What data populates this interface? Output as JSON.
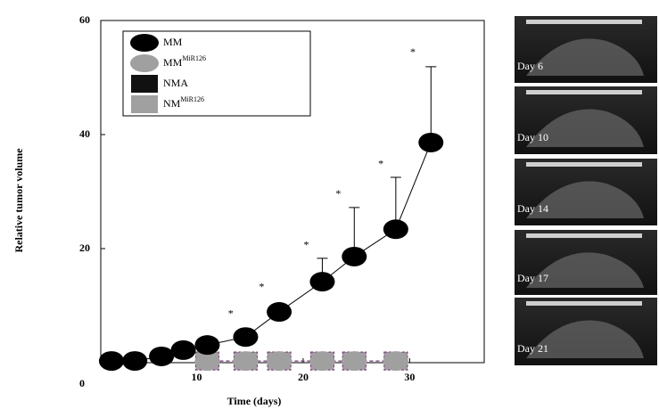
{
  "chart_data": {
    "type": "line",
    "x_label": "Time (days)",
    "y_label": "Relative tumor volume",
    "xlim": [
      1,
      37
    ],
    "xticks": [
      10,
      20,
      30
    ],
    "ylim": [
      0,
      60
    ],
    "yticks": [
      0,
      20,
      40,
      60
    ],
    "series": [
      {
        "name": "MM",
        "marker": "ellipse",
        "color": "#000000",
        "x": [
          2,
          4.2,
          6.7,
          8.75,
          11,
          14.6,
          17.75,
          21.8,
          24.8,
          28.7,
          32
        ],
        "values": [
          0.3,
          0.3,
          1.1,
          2.2,
          3.1,
          4.5,
          8.9,
          14.2,
          18.6,
          23.4,
          38.6
        ],
        "errors": [
          null,
          null,
          null,
          null,
          null,
          null,
          null,
          4.1,
          8.6,
          9.1,
          13.3
        ]
      },
      {
        "name": "MM",
        "name_sup": "MiR126",
        "marker": "ellipse",
        "color": "#a0a0a0",
        "x": [
          11,
          14.6,
          17.75,
          21.8,
          24.8,
          28.7
        ],
        "values": [
          0.3,
          0.3,
          0.3,
          0.3,
          0.3,
          0.3
        ]
      },
      {
        "name": "NMA",
        "marker": "square",
        "color": "#111111",
        "x": [
          11,
          14.6,
          17.75,
          21.8,
          24.8,
          28.7
        ],
        "values": [
          0.3,
          0.3,
          0.3,
          0.3,
          0.3,
          0.3
        ]
      },
      {
        "name": "NM",
        "name_sup": "MiR126",
        "marker": "square",
        "color": "#a0a0a0",
        "x": [
          11,
          14.6,
          17.75,
          21.8,
          24.8,
          28.7
        ],
        "values": [
          0.3,
          0.3,
          0.3,
          0.3,
          0.3,
          0.3
        ]
      }
    ],
    "annotations": [
      {
        "text": "*",
        "x": 13.2,
        "y": 8.5
      },
      {
        "text": "*",
        "x": 16.1,
        "y": 13.2
      },
      {
        "text": "*",
        "x": 20.3,
        "y": 20.5
      },
      {
        "text": "*",
        "x": 23.3,
        "y": 29.5
      },
      {
        "text": "*",
        "x": 27.3,
        "y": 34.7
      },
      {
        "text": "*",
        "x": 30.3,
        "y": 54.3
      }
    ]
  },
  "images": {
    "labels": [
      "Day 6",
      "Day 10",
      "Day 14",
      "Day 17",
      "Day 21"
    ]
  }
}
